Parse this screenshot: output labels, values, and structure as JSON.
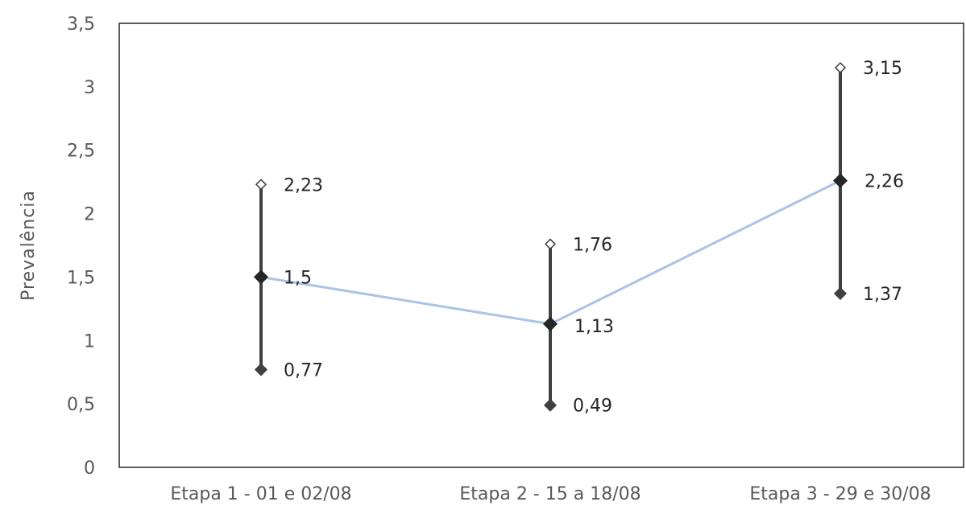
{
  "chart_data": {
    "type": "line",
    "ylabel": "Prevalência",
    "xlabel": "",
    "title": "",
    "ylim": [
      0,
      3.5
    ],
    "y_ticks": [
      "0",
      "0,5",
      "1",
      "1,5",
      "2",
      "2,5",
      "3",
      "3,5"
    ],
    "y_tick_values": [
      0,
      0.5,
      1,
      1.5,
      2,
      2.5,
      3,
      3.5
    ],
    "categories": [
      "Etapa 1 - 01 e 02/08",
      "Etapa 2 - 15 a 18/08",
      "Etapa 3 - 29 e 30/08"
    ],
    "series": [
      {
        "values": [
          1.5,
          1.13,
          2.26
        ],
        "labels": [
          "1,5",
          "1,13",
          "2,26"
        ]
      }
    ],
    "error_bars": {
      "upper": [
        2.23,
        1.76,
        3.15
      ],
      "upper_labels": [
        "2,23",
        "1,76",
        "3,15"
      ],
      "lower": [
        0.77,
        0.49,
        1.37
      ],
      "lower_labels": [
        "0,77",
        "0,49",
        "1,37"
      ]
    },
    "grid": false,
    "colors": {
      "line": "#a9c4e4",
      "marker": "#262626",
      "bar": "#404040",
      "frame": "#262626"
    }
  }
}
